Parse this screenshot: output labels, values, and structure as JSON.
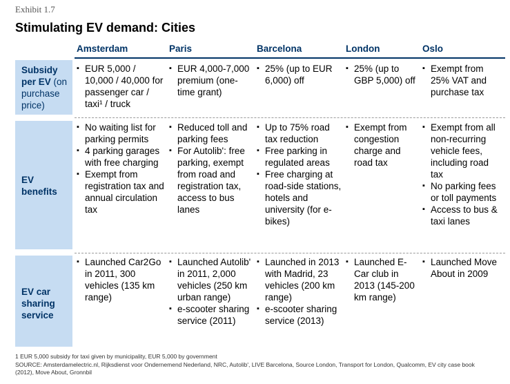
{
  "exhibit": "Exhibit 1.7",
  "title": "Stimulating EV demand: Cities",
  "columns": [
    "Amsterdam",
    "Paris",
    "Barcelona",
    "London",
    "Oslo"
  ],
  "rows": [
    {
      "label": "Subsidy per EV (on purchase price)",
      "label_html": "Subsidy<br>per EV <span style='font-weight:normal'>(on<br>purchase<br>price)</span>",
      "cells": [
        [
          "EUR 5,000 / 10,000 / 40,000 for passenger car / taxi¹ / truck"
        ],
        [
          "EUR 4,000-7,000 premium (one-time grant)"
        ],
        [
          "25% (up to EUR 6,000) off"
        ],
        [
          "25% (up to GBP 5,000) off"
        ],
        [
          "Exempt from 25% VAT and purchase tax"
        ]
      ]
    },
    {
      "label": "EV benefits",
      "cells": [
        [
          "No waiting list for parking permits",
          "4 parking garages with free charging",
          "Exempt from registration tax and annual circulation tax"
        ],
        [
          "Reduced toll and parking fees",
          "For Autolib': free parking, exempt from road and registration tax, access to bus lanes"
        ],
        [
          "Up to 75% road tax reduction",
          "Free parking in regulated areas",
          "Free charging at road-side stations, hotels and university (for e-bikes)"
        ],
        [
          "Exempt from congestion charge and road tax"
        ],
        [
          "Exempt from all non-recurring vehicle fees, including road tax",
          "No parking fees or toll payments",
          "Access to bus & taxi lanes"
        ]
      ]
    },
    {
      "label": "EV car sharing service",
      "cells": [
        [
          "Launched Car2Go in 2011, 300 vehicles (135 km range)"
        ],
        [
          "Launched Autolib' in 2011, 2,000 vehicles (250 km urban range)",
          "e-scooter sharing service (2011)"
        ],
        [
          "Launched in 2013 with Madrid, 23 vehicles (200 km range)",
          "e-scooter sharing service (2013)"
        ],
        [
          "Launched E-Car club in 2013 (145-200 km range)"
        ],
        [
          "Launched Move About in 2009"
        ]
      ]
    }
  ],
  "footnote": "1 EUR 5,000 subsidy for taxi given by municipality, EUR 5,000 by government",
  "source": "SOURCE: Amsterdamelectric.nl, Rijksdienst voor Ondernemend Nederland, NRC, Autolib', LIVE Barcelona, Source London, Transport for London, Qualcomm, EV city case book (2012), Move About, Gronnbil",
  "colors": {
    "accent": "#003366",
    "label_bg": "#c6dcf2"
  }
}
